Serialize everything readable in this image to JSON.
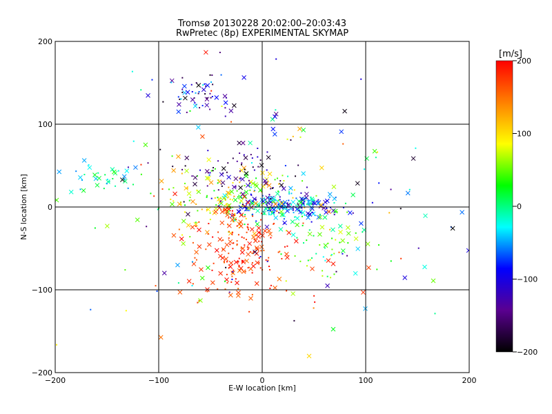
{
  "chart_data": [
    {
      "type": "scatter",
      "title": "Tromsø 20130228 20:02:00–20:03:43",
      "subtitle": "RwPretec (8p) EXPERIMENTAL SKYMAP",
      "xlabel": "E-W location [km]",
      "ylabel": "N-S location [km]",
      "xlim": [
        -200,
        200
      ],
      "ylim": [
        -200,
        200
      ],
      "xticks": [
        -200,
        -100,
        0,
        100,
        200
      ],
      "yticks": [
        -200,
        -100,
        0,
        100,
        200
      ],
      "xtick_labels": [
        "−200",
        "−100",
        "0",
        "100",
        "200"
      ],
      "ytick_labels": [
        "−200",
        "−100",
        "0",
        "100",
        "200"
      ],
      "grid_lines_x": [
        -100,
        0,
        100
      ],
      "grid_lines_y": [
        -100,
        0,
        100
      ],
      "marker_encoding": "x = large-echo, dot = small-echo; color = velocity [m/s]",
      "clusters": [
        {
          "cx": -60,
          "cy": 135,
          "sx": 15,
          "sy": 12,
          "n": 55,
          "vmin": -200,
          "vmax": -20
        },
        {
          "cx": -150,
          "cy": 35,
          "sx": 18,
          "sy": 8,
          "n": 35,
          "vmin": -60,
          "vmax": 40
        },
        {
          "cx": 20,
          "cy": 2,
          "sx": 25,
          "sy": 8,
          "n": 220,
          "vmin": -140,
          "vmax": 10
        },
        {
          "cx": -35,
          "cy": 10,
          "sx": 35,
          "sy": 18,
          "n": 160,
          "vmin": 20,
          "vmax": 140
        },
        {
          "cx": -20,
          "cy": -50,
          "sx": 25,
          "sy": 30,
          "n": 200,
          "vmin": 150,
          "vmax": 200
        },
        {
          "cx": 60,
          "cy": -45,
          "sx": 20,
          "sy": 25,
          "n": 60,
          "vmin": -30,
          "vmax": 80
        },
        {
          "cx": -20,
          "cy": 40,
          "sx": 30,
          "sy": 15,
          "n": 70,
          "vmin": -200,
          "vmax": -100
        },
        {
          "cx": 0,
          "cy": 0,
          "sx": 120,
          "sy": 90,
          "n": 180,
          "vmin": -200,
          "vmax": 200
        }
      ]
    },
    {
      "type": "heatmap",
      "title": "[m/s]",
      "colormap": [
        "#000000",
        "#5a0090",
        "#0000ff",
        "#00ffff",
        "#00ff00",
        "#ffff00",
        "#ff8000",
        "#ff0000"
      ],
      "range": [
        -200,
        200
      ],
      "ticks": [
        200,
        100,
        0,
        -100,
        -200
      ],
      "tick_labels": [
        "200",
        "100",
        "0",
        "−100",
        "−200"
      ]
    }
  ]
}
